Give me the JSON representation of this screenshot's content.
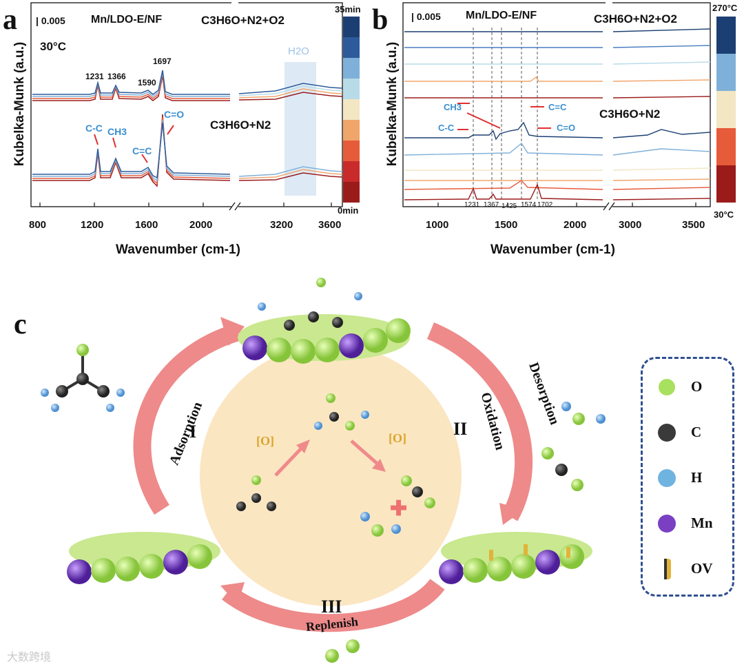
{
  "panel_a": {
    "letter": "a",
    "scale_bar": "0.005",
    "sample": "Mn/LDO-E/NF",
    "gas_top": "C3H6O+N2+O2",
    "gas_bottom": "C3H6O+N2",
    "temperature": "30°C",
    "peaks_top": [
      "1231",
      "1366",
      "1590",
      "1697"
    ],
    "band_labels": [
      "C-C",
      "CH3",
      "C=C",
      "C=O"
    ],
    "region_label": "H2O",
    "colorbar_top": "35min",
    "colorbar_bottom": "0min",
    "x_ticks": [
      "800",
      "1200",
      "1600",
      "2000",
      "3200",
      "3600"
    ],
    "y_label": "Kubelka-Munk (a.u.)",
    "x_label": "Wavenumber (cm-1)"
  },
  "panel_b": {
    "letter": "b",
    "scale_bar": "0.005",
    "sample": "Mn/LDO-E/NF",
    "gas_top": "C3H6O+N2+O2",
    "gas_bottom": "C3H6O+N2",
    "band_labels": [
      "CH3",
      "C-C",
      "C=C",
      "C=O"
    ],
    "peak_positions": [
      "1231",
      "1367",
      "1425",
      "1574",
      "1702"
    ],
    "colorbar_top": "270°C",
    "colorbar_bottom": "30°C",
    "x_ticks": [
      "1000",
      "1500",
      "2000",
      "3000",
      "3500"
    ],
    "y_label": "Kubelka-Munk (a.u.)",
    "x_label": "Wavenumber (cm-1)"
  },
  "panel_c": {
    "letter": "c",
    "steps": [
      "I",
      "II",
      "III"
    ],
    "step_names": [
      "Adsorption",
      "Oxidation",
      "Desorption",
      "Replenish"
    ],
    "oxygen_label": "[O]",
    "legend": [
      {
        "symbol": "O",
        "color": "#a8e05f"
      },
      {
        "symbol": "C",
        "color": "#3a3a3a"
      },
      {
        "symbol": "H",
        "color": "#6fb3e0"
      },
      {
        "symbol": "Mn",
        "color": "#7b3fc4"
      },
      {
        "symbol": "OV",
        "color": "#e2b33a"
      }
    ]
  },
  "colors": {
    "red_series": [
      "#9b1b1b",
      "#c92a2a",
      "#e65b3a",
      "#f0a56b",
      "#f2e6c3"
    ],
    "blue_series": [
      "#b8dbe8",
      "#7fb0d9",
      "#4a7cc0",
      "#2d5a9a",
      "#1c3f73"
    ],
    "highlight": "#c7dcef",
    "arrow": "#e05555",
    "arrow_pink": "#ee8a8a",
    "circle_fill": "#fbe6c2",
    "legend_border": "#2f4f8f"
  },
  "watermark": "大数跨境"
}
